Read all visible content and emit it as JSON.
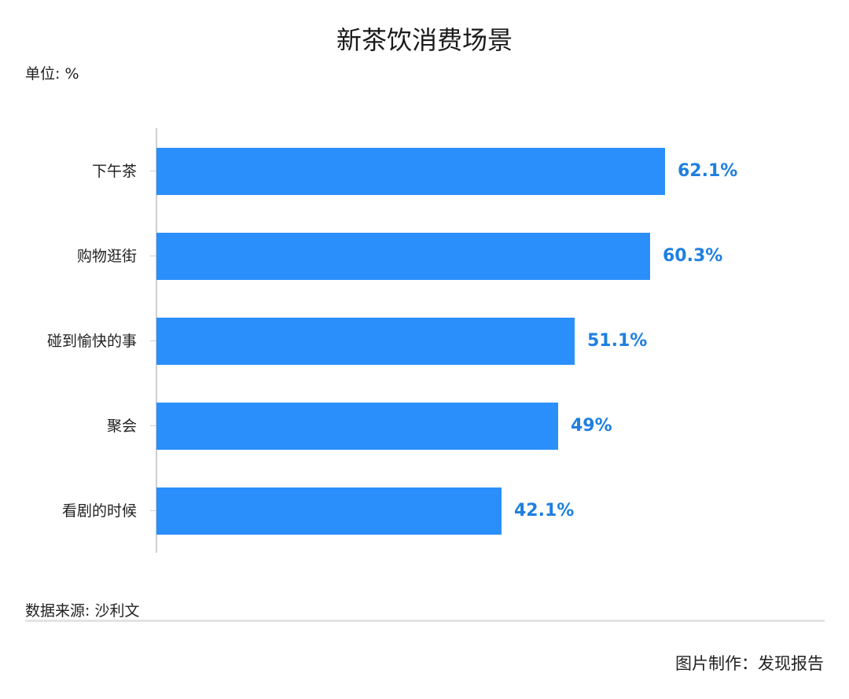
{
  "chart_data": {
    "type": "bar",
    "orientation": "horizontal",
    "title": "新茶饮消费场景",
    "unit_label": "单位: %",
    "categories": [
      "下午茶",
      "购物逛街",
      "碰到愉快的事",
      "聚会",
      "看剧的时候"
    ],
    "values": [
      62.1,
      60.3,
      51.1,
      49,
      42.1
    ],
    "value_labels": [
      "62.1%",
      "60.3%",
      "51.1%",
      "49%",
      "42.1%"
    ],
    "xlabel": "",
    "ylabel": "",
    "xlim": [
      0,
      100
    ],
    "grid": false,
    "legend": null,
    "bar_color": "#2b8ffb",
    "label_color": "#1f7fe0"
  },
  "footer": {
    "source": "数据来源: 沙利文",
    "credit": "图片制作：发现报告"
  }
}
